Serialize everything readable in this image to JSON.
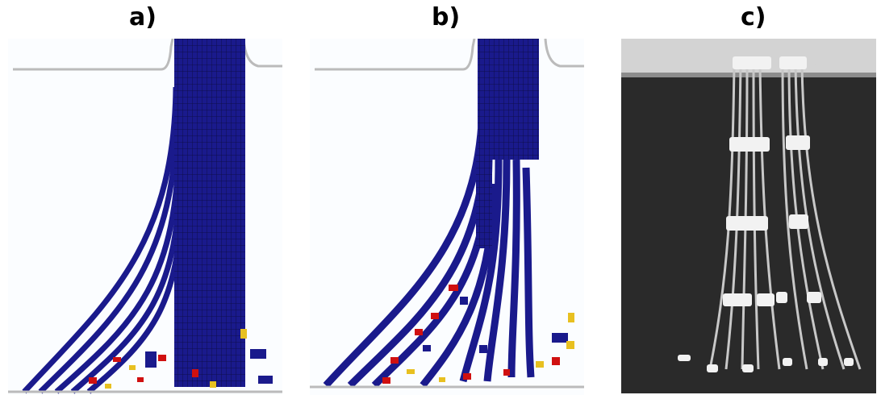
{
  "figure": {
    "panels": [
      {
        "label": "a)"
      },
      {
        "label": "b)"
      },
      {
        "label": "c)"
      }
    ]
  },
  "colors": {
    "strand_blue": "#1a1a8c",
    "strand_grid": "#0d0d40",
    "fragment_red": "#d01010",
    "fragment_yellow": "#e8c020",
    "photo_dark": "#2a2a2a",
    "photo_fiber": "#c8c8c8",
    "photo_marker": "#f2f2f2"
  }
}
